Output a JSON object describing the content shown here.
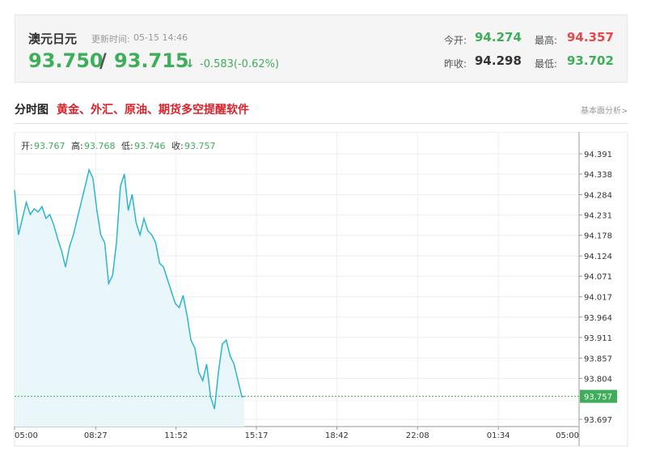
{
  "quote": {
    "name": "澳元日元",
    "update_label": "更新时间:",
    "update_time": "05-15 14:46",
    "price": "93.750",
    "separator": "/",
    "price2": "93.715",
    "arrow": "↓",
    "change": "-0.583(-0.62%)",
    "open_label": "今开:",
    "open": "94.274",
    "high_label": "最高:",
    "high": "94.357",
    "prev_label": "昨收:",
    "prev": "94.298",
    "low_label": "最低:",
    "low": "93.702"
  },
  "section": {
    "title": "分时图",
    "promo": "黄金、外汇、原油、期货多空提醒软件",
    "link": "基本面分析>"
  },
  "chart_data": {
    "type": "line",
    "ohlc": [
      {
        "label": "开:",
        "value": 93.767
      },
      {
        "label": "高:",
        "value": 93.768
      },
      {
        "label": "低:",
        "value": 93.746
      },
      {
        "label": "收:",
        "value": 93.757
      }
    ],
    "x": [
      "05:00",
      "05:10",
      "05:20",
      "05:30",
      "05:40",
      "05:50",
      "06:00",
      "06:10",
      "06:20",
      "06:30",
      "06:40",
      "06:50",
      "07:00",
      "07:10",
      "07:20",
      "07:30",
      "07:40",
      "07:50",
      "08:00",
      "08:10",
      "08:20",
      "08:30",
      "08:40",
      "08:50",
      "09:00",
      "09:10",
      "09:20",
      "09:30",
      "09:40",
      "09:50",
      "10:00",
      "10:10",
      "10:20",
      "10:30",
      "10:40",
      "10:50",
      "11:00",
      "11:10",
      "11:20",
      "11:30",
      "11:40",
      "11:50",
      "12:00",
      "12:10",
      "12:20",
      "12:30",
      "12:40",
      "12:50",
      "13:00",
      "13:10",
      "13:20",
      "13:30",
      "13:40",
      "13:50",
      "14:00",
      "14:10",
      "14:20",
      "14:30",
      "14:40",
      "14:46"
    ],
    "series": [
      {
        "name": "澳元日元",
        "color": "#2bb5cf",
        "values": [
          94.296,
          94.179,
          94.222,
          94.264,
          94.232,
          94.247,
          94.239,
          94.253,
          94.222,
          94.232,
          94.205,
          94.169,
          94.137,
          94.095,
          94.148,
          94.179,
          94.222,
          94.264,
          94.306,
          94.349,
          94.327,
          94.243,
          94.179,
          94.158,
          94.052,
          94.073,
          94.158,
          94.306,
          94.338,
          94.243,
          94.285,
          94.211,
          94.179,
          94.222,
          94.19,
          94.179,
          94.158,
          94.105,
          94.095,
          94.063,
          94.031,
          94.0,
          93.989,
          94.021,
          93.968,
          93.904,
          93.883,
          93.82,
          93.798,
          93.841,
          93.756,
          93.724,
          93.82,
          93.894,
          93.904,
          93.862,
          93.841,
          93.798,
          93.756,
          93.757
        ]
      }
    ],
    "current_value": 93.757,
    "xticks": [
      "05:00",
      "08:27",
      "11:52",
      "15:17",
      "18:42",
      "22:08",
      "01:34",
      "05:00"
    ],
    "ylim": [
      93.678,
      94.448
    ],
    "yticks": [
      93.697,
      93.804,
      93.857,
      93.911,
      93.964,
      94.017,
      94.071,
      94.124,
      94.178,
      94.231,
      94.284,
      94.338,
      94.391
    ],
    "grid": true,
    "area_color": "#e9f7fb",
    "current_color": "#3fae5b"
  }
}
